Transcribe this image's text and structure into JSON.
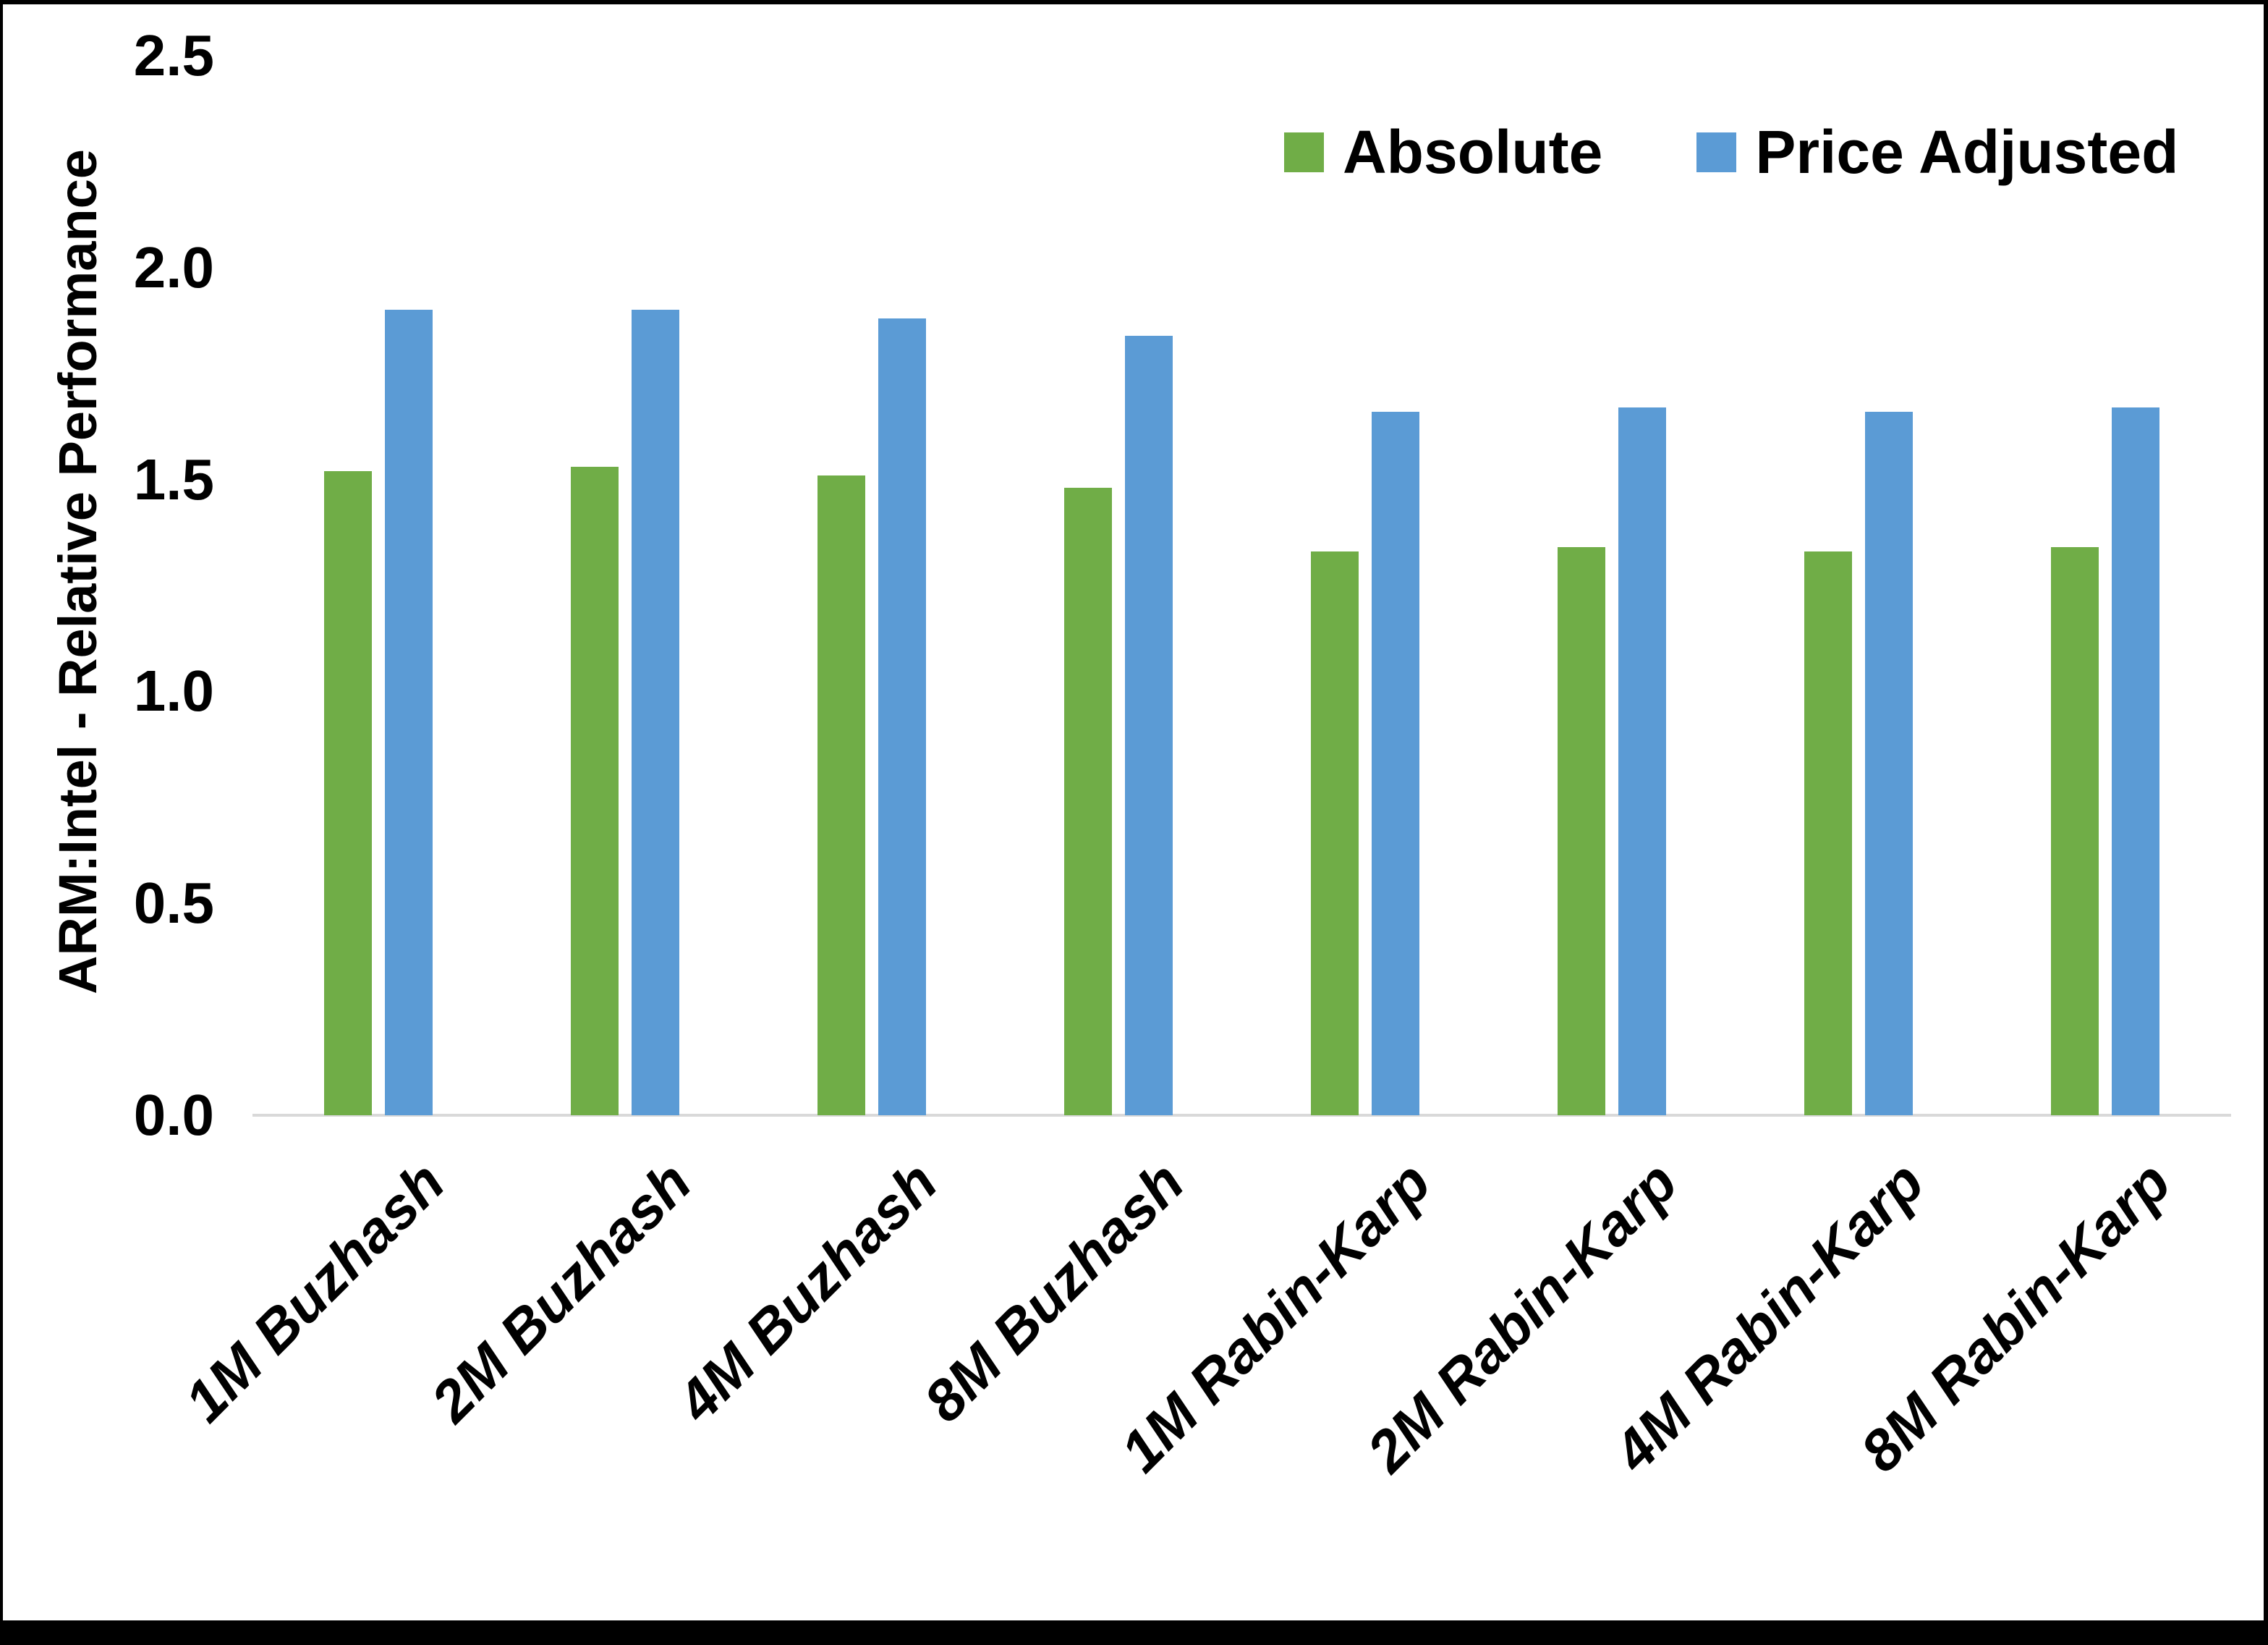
{
  "chart_data": {
    "type": "bar",
    "title": "",
    "xlabel": "",
    "ylabel": "ARM:Intel - Relative Performance",
    "ylim": [
      0,
      2.5
    ],
    "y_ticks": [
      "0.0",
      "0.5",
      "1.0",
      "1.5",
      "2.0",
      "2.5"
    ],
    "grid": false,
    "legend_position": "top-right",
    "categories": [
      "1M Buzhash",
      "2M Buzhash",
      "4M Buzhash",
      "8M Buzhash",
      "1M Rabin-Karp",
      "2M Rabin-Karp",
      "4M Rabin-Karp",
      "8M Rabin-Karp"
    ],
    "series": [
      {
        "name": "Absolute",
        "color": "#70AD47",
        "values": [
          1.52,
          1.53,
          1.51,
          1.48,
          1.33,
          1.34,
          1.33,
          1.34
        ]
      },
      {
        "name": "Price Adjusted",
        "color": "#5B9BD5",
        "values": [
          1.9,
          1.9,
          1.88,
          1.84,
          1.66,
          1.67,
          1.66,
          1.67
        ]
      }
    ]
  },
  "colors": {
    "axis_line": "#D9D9D9",
    "text": "#000000",
    "frame_border": "#000000",
    "background": "#FFFFFF"
  }
}
